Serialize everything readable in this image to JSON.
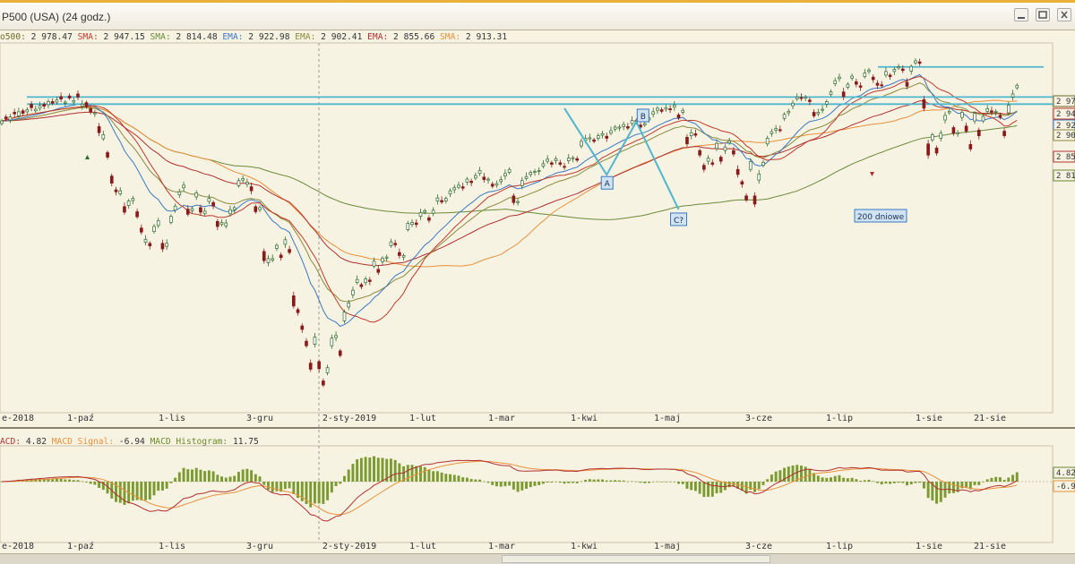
{
  "window": {
    "title": "P500 (USA) (24 godz.)",
    "icons": [
      "minimize-icon",
      "maximize-icon",
      "close-icon"
    ]
  },
  "indicators": [
    {
      "label": "o500:",
      "value": "2 978.47",
      "color": "#6a6a2a"
    },
    {
      "label": "SMA:",
      "value": "2 947.15",
      "color": "#c0392b"
    },
    {
      "label": "SMA:",
      "value": "2 814.48",
      "color": "#6a8a3a"
    },
    {
      "label": "EMA:",
      "value": "2 922.98",
      "color": "#3a79c4"
    },
    {
      "label": "EMA:",
      "value": "2 902.41",
      "color": "#8a8a3a"
    },
    {
      "label": "EMA:",
      "value": "2 855.66",
      "color": "#b03030"
    },
    {
      "label": "SMA:",
      "value": "2 913.31",
      "color": "#e8903a"
    }
  ],
  "macd_legend": [
    {
      "label": "ACD:",
      "value": "4.82",
      "color": "#b03030"
    },
    {
      "label": "MACD Signal:",
      "value": "-6.94",
      "color": "#e8903a"
    },
    {
      "label": "MACD Histogram:",
      "value": "11.75",
      "color": "#6a8a2a"
    }
  ],
  "price_labels": [
    "2 97",
    "2 94",
    "2 92",
    "2 90",
    "2 85",
    "2 81"
  ],
  "price_label_colors": [
    "#6a6a2a",
    "#c0392b",
    "#3a79c4",
    "#8a8a3a",
    "#b03030",
    "#6a8a3a"
  ],
  "macd_labels": [
    "4.82",
    "-6.9"
  ],
  "date_labels": [
    "e-2018",
    "1-paź",
    "1-lis",
    "3-gru",
    "2-sty-2019",
    "1-lut",
    "1-mar",
    "1-kwi",
    "1-maj",
    "3-cze",
    "1-lip",
    "1-sie",
    "21-sie"
  ],
  "annotations": {
    "a": "A",
    "b": "B",
    "c": "C?",
    "ma200": "200 dniowe"
  },
  "colors": {
    "background": "#f7f3e3",
    "up_candle": "#2d6a2d",
    "down_candle": "#8a1a1a",
    "trendline": "#4fb6cf",
    "histogram": "#7b9a2f"
  },
  "chart_data": {
    "type": "candlestick",
    "title": "",
    "ylim": [
      2340,
      3060
    ],
    "close": [
      2907,
      2911,
      2915,
      2921,
      2925,
      2922,
      2929,
      2933,
      2930,
      2937,
      2936,
      2945,
      2942,
      2948,
      2950,
      2944,
      2952,
      2947,
      2954,
      2940,
      2935,
      2925,
      2923,
      2884,
      2880,
      2836,
      2785,
      2768,
      2770,
      2728,
      2750,
      2755,
      2719,
      2689,
      2675,
      2662,
      2700,
      2711,
      2656,
      2667,
      2720,
      2740,
      2768,
      2781,
      2724,
      2735,
      2766,
      2728,
      2730,
      2755,
      2740,
      2700,
      2708,
      2707,
      2733,
      2737,
      2790,
      2794,
      2787,
      2770,
      2729,
      2737,
      2633,
      2637,
      2637,
      2663,
      2639,
      2674,
      2649,
      2544,
      2531,
      2498,
      2466,
      2420,
      2483,
      2421,
      2389,
      2423,
      2481,
      2486,
      2447,
      2532,
      2550,
      2575,
      2596,
      2582,
      2597,
      2592,
      2632,
      2610,
      2638,
      2640,
      2670,
      2664,
      2643,
      2643,
      2706,
      2708,
      2704,
      2727,
      2731,
      2712,
      2732,
      2756,
      2748,
      2755,
      2770,
      2776,
      2781,
      2775,
      2793,
      2786,
      2800,
      2810,
      2792,
      2793,
      2779,
      2784,
      2792,
      2804,
      2812,
      2747,
      2749,
      2790,
      2798,
      2806,
      2808,
      2810,
      2823,
      2832,
      2822,
      2833,
      2822,
      2816,
      2834,
      2835,
      2830,
      2867,
      2873,
      2874,
      2867,
      2878,
      2882,
      2873,
      2888,
      2895,
      2895,
      2900,
      2893,
      2908,
      2906,
      2895,
      2902,
      2913,
      2925,
      2932,
      2926,
      2933,
      2929,
      2938,
      2913,
      2928,
      2862,
      2884,
      2879,
      2840,
      2812,
      2834,
      2822,
      2863,
      2828,
      2856,
      2868,
      2842,
      2802,
      2783,
      2752,
      2827,
      2744,
      2803,
      2826,
      2873,
      2886,
      2892,
      2888,
      2920,
      2926,
      2942,
      2954,
      2951,
      2954,
      2945,
      2917,
      2924,
      2930,
      2945,
      2964,
      2986,
      2993,
      2955,
      2979,
      2995,
      2979,
      2973,
      3001,
      3007,
      2988,
      2977,
      2976,
      3004,
      2994,
      3008,
      3013,
      3006,
      2975,
      3014,
      3025,
      3020,
      2932,
      2840,
      2880,
      2844,
      2883,
      2918,
      2926,
      2883,
      2884,
      2924,
      2887,
      2852,
      2922,
      2878,
      2916,
      2931,
      2924,
      2926,
      2914,
      2878,
      2938,
      2960,
      2977
    ],
    "open_offset": [
      -5,
      4,
      -6,
      3,
      -8,
      5,
      -4,
      7,
      -3,
      -5,
      4,
      -6,
      3,
      -4,
      5,
      -2,
      4,
      -3,
      6,
      -4,
      8,
      6,
      -2,
      12,
      -8,
      9,
      14,
      4,
      -6,
      11,
      -9,
      -4,
      10,
      8,
      -6,
      5,
      -10,
      -9,
      11,
      -6,
      -12,
      -8,
      -6,
      -5,
      10,
      -4,
      -8,
      9,
      -5,
      -6,
      7,
      10,
      -4,
      -6,
      -8,
      -4,
      -10,
      -3,
      -4,
      8,
      10,
      -4,
      18,
      -8,
      -3,
      -6,
      5,
      -9,
      6,
      20,
      6,
      7,
      9,
      12,
      -14,
      14,
      8,
      -10,
      -15,
      -4,
      9,
      -17,
      -8,
      -9,
      -6,
      4,
      -7,
      3,
      -10,
      6,
      -7,
      -2,
      -8,
      3,
      6,
      -3,
      -12,
      -4,
      3,
      -7,
      -3,
      5,
      -6,
      -6,
      3,
      -5,
      -6,
      -4,
      -4,
      3,
      -6,
      3,
      -5,
      -6,
      5,
      -2,
      4,
      -3,
      -4,
      -5,
      -6,
      13,
      -2,
      -10,
      -4,
      -4,
      -2,
      -2,
      -5,
      -4,
      3,
      -4,
      3,
      2,
      -5,
      -2,
      3,
      -9,
      -4,
      -2,
      3,
      -5,
      -3,
      4,
      -5,
      -4,
      -2,
      -4,
      3,
      -6,
      2,
      4,
      -3,
      -4,
      -5,
      -4,
      3,
      -3,
      2,
      -4,
      6,
      -4,
      13,
      -6,
      3,
      9,
      8,
      -6,
      3,
      -10,
      8,
      -7,
      -4,
      7,
      10,
      5,
      8,
      -15,
      16,
      -12,
      -6,
      -11,
      -4,
      -3,
      2,
      -8,
      -3,
      -5,
      -4,
      2,
      -2,
      3,
      7,
      -3,
      -2,
      -5,
      -5,
      -6,
      -3,
      9,
      -6,
      -4,
      5,
      3,
      -7,
      -3,
      5,
      4,
      2,
      -7,
      3,
      -4,
      -2,
      3,
      8,
      -9,
      -4,
      3,
      17,
      22,
      -10,
      10,
      -10,
      -9,
      -3,
      11,
      -2,
      -10,
      10,
      9,
      -15,
      11,
      -9,
      -5,
      3,
      -2,
      4,
      9,
      -15,
      -6,
      -5
    ],
    "sma_fast_series": {
      "name": "SMA",
      "final": 2947.15
    },
    "sma_slow_series": {
      "name": "SMA",
      "final": 2814.48
    },
    "ema_series": [
      {
        "name": "EMA",
        "final": 2922.98
      },
      {
        "name": "EMA",
        "final": 2902.41
      },
      {
        "name": "EMA",
        "final": 2855.66
      }
    ],
    "sma_series": {
      "name": "SMA",
      "final": 2913.31
    },
    "resistance_levels": [
      2954,
      2940,
      3013
    ],
    "macd": {
      "macd": 4.82,
      "signal": -6.94,
      "histogram": 11.75
    }
  }
}
